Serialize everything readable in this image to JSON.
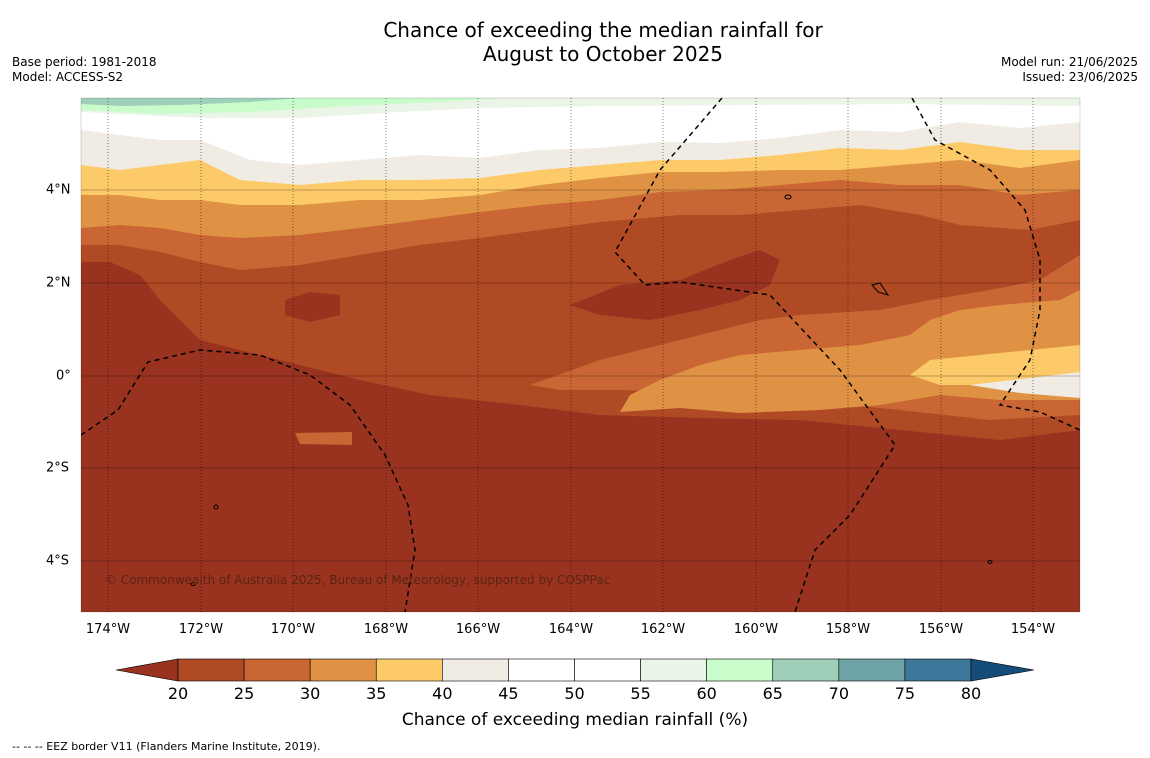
{
  "title_line1": "Chance of exceeding the median rainfall for",
  "title_line2": "August to October 2025",
  "base_period": "Base period: 1981-2018",
  "model": "Model: ACCESS-S2",
  "model_run": "Model run: 21/06/2025",
  "issued": "Issued: 23/06/2025",
  "copyright": "© Commonwealth of Australia 2025, Bureau of Meteorology, supported by COSPPac",
  "lon_labels": [
    "174°W",
    "172°W",
    "170°W",
    "168°W",
    "166°W",
    "164°W",
    "162°W",
    "160°W",
    "158°W",
    "156°W",
    "154°W"
  ],
  "lat_labels": [
    "4°N",
    "2°N",
    "0°",
    "2°S",
    "4°S"
  ],
  "colorbar": {
    "title": "Chance of exceeding median rainfall (%)",
    "ticks": [
      "20",
      "25",
      "30",
      "35",
      "40",
      "45",
      "50",
      "55",
      "60",
      "65",
      "70",
      "75",
      "80"
    ],
    "colors": [
      "#993320",
      "#b04a25",
      "#c96633",
      "#e09244",
      "#fcca68",
      "#f0ece4",
      "#ffffff",
      "#ffffff",
      "#eaf5e8",
      "#c8fcca",
      "#9ecfb8",
      "#6ea3a6",
      "#3d7799",
      "#154d7a"
    ]
  },
  "eez_legend": "-- -- -- EEZ border V11 (Flanders Marine Institute, 2019)."
}
